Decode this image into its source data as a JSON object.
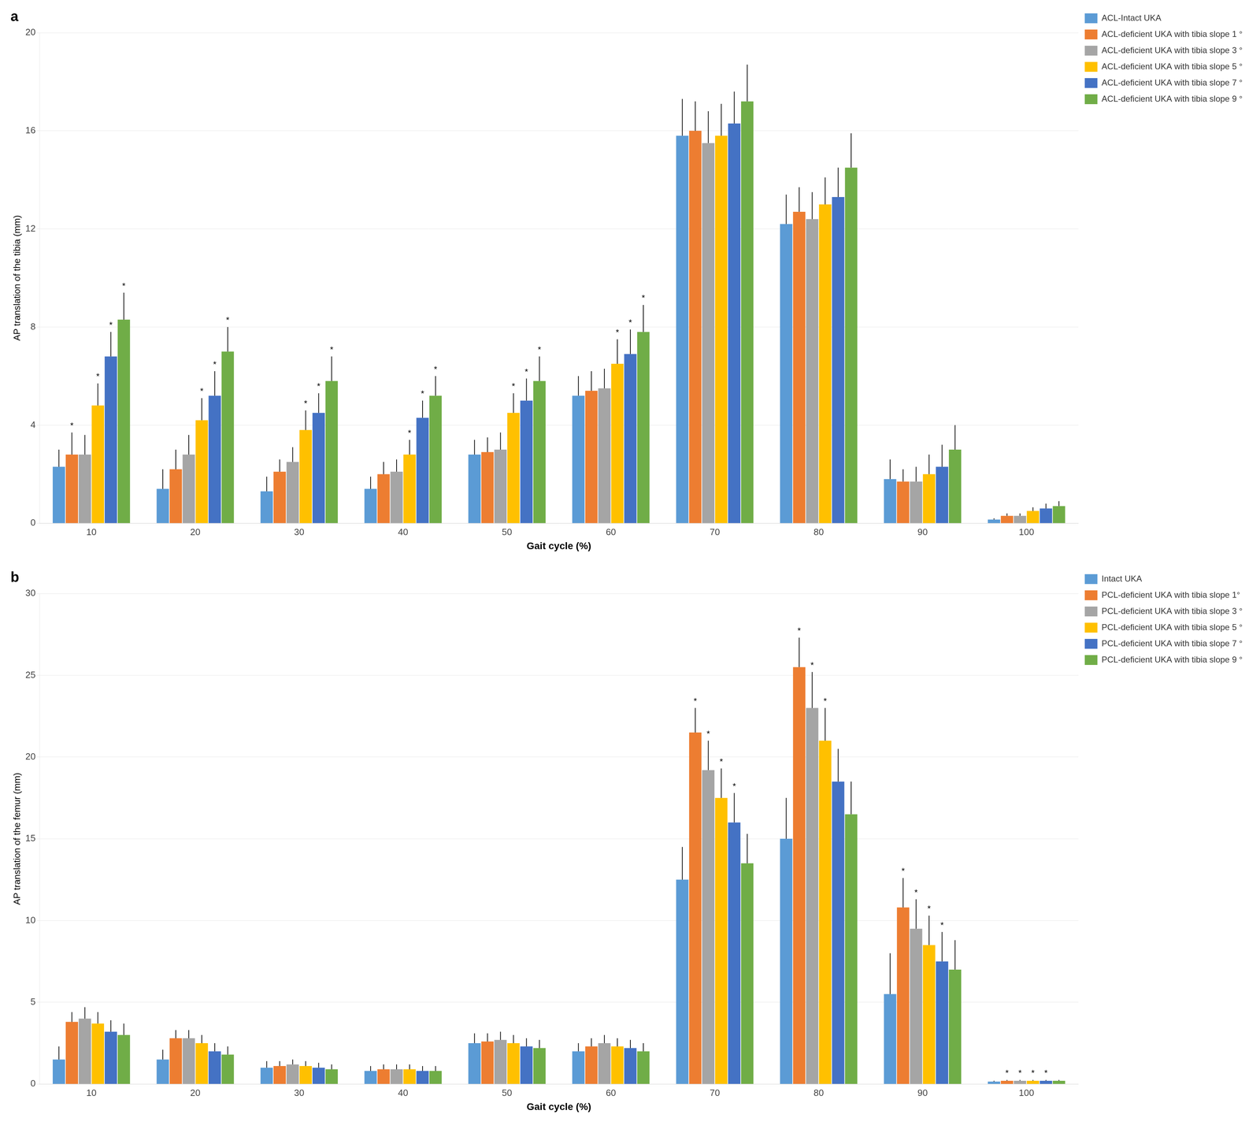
{
  "chart_data": [
    {
      "type": "bar",
      "title": "a",
      "xlabel": "Gait cycle (%)",
      "ylabel": "AP translation of the tibia (mm)",
      "categories": [
        10,
        20,
        30,
        40,
        50,
        60,
        70,
        80,
        90,
        100
      ],
      "ylim": [
        0,
        20
      ],
      "yticks": [
        0,
        4,
        8,
        12,
        16,
        20
      ],
      "grid": true,
      "legend": "right",
      "series": [
        {
          "name": "ACL-Intact UKA",
          "color": "#5B9BD5",
          "values": [
            2.3,
            1.4,
            1.3,
            1.4,
            2.8,
            5.2,
            15.8,
            12.2,
            1.8,
            0.15
          ],
          "errors": [
            0.7,
            0.8,
            0.6,
            0.5,
            0.6,
            0.8,
            1.5,
            1.2,
            0.8,
            0.05
          ],
          "annotations": [
            null,
            null,
            null,
            null,
            null,
            null,
            null,
            null,
            null,
            null
          ]
        },
        {
          "name": "ACL-deficient UKA with tibia slope 1 °",
          "color": "#ED7D31",
          "values": [
            2.8,
            2.2,
            2.1,
            2.0,
            2.9,
            5.4,
            16.0,
            12.7,
            1.7,
            0.3
          ],
          "errors": [
            0.9,
            0.8,
            0.5,
            0.5,
            0.6,
            0.8,
            1.2,
            1.0,
            0.5,
            0.1
          ],
          "annotations": [
            "*",
            null,
            null,
            null,
            null,
            null,
            null,
            null,
            null,
            null
          ]
        },
        {
          "name": "ACL-deficient UKA with tibia slope 3 °",
          "color": "#A5A5A5",
          "values": [
            2.8,
            2.8,
            2.5,
            2.1,
            3.0,
            5.5,
            15.5,
            12.4,
            1.7,
            0.3
          ],
          "errors": [
            0.8,
            0.8,
            0.6,
            0.5,
            0.7,
            0.8,
            1.3,
            1.1,
            0.6,
            0.1
          ],
          "annotations": [
            null,
            null,
            null,
            null,
            null,
            null,
            null,
            null,
            null,
            null
          ]
        },
        {
          "name": "ACL-deficient UKA with tibia slope 5 °",
          "color": "#FFC000",
          "values": [
            4.8,
            4.2,
            3.8,
            2.8,
            4.5,
            6.5,
            15.8,
            13.0,
            2.0,
            0.5
          ],
          "errors": [
            0.9,
            0.9,
            0.8,
            0.6,
            0.8,
            1.0,
            1.3,
            1.1,
            0.8,
            0.15
          ],
          "annotations": [
            "*",
            "*",
            "*",
            "*",
            "*",
            "*",
            null,
            null,
            null,
            null
          ]
        },
        {
          "name": "ACL-deficient UKA with tibia slope 7 °",
          "color": "#4472C4",
          "values": [
            6.8,
            5.2,
            4.5,
            4.3,
            5.0,
            6.9,
            16.3,
            13.3,
            2.3,
            0.6
          ],
          "errors": [
            1.0,
            1.0,
            0.8,
            0.7,
            0.9,
            1.0,
            1.3,
            1.2,
            0.9,
            0.2
          ],
          "annotations": [
            "*",
            "*",
            "*",
            "*",
            "*",
            "*",
            null,
            null,
            null,
            null
          ]
        },
        {
          "name": "ACL-deficient UKA with tibia slope 9 °",
          "color": "#70AD47",
          "values": [
            8.3,
            7.0,
            5.8,
            5.2,
            5.8,
            7.8,
            17.2,
            14.5,
            3.0,
            0.7
          ],
          "errors": [
            1.1,
            1.0,
            1.0,
            0.8,
            1.0,
            1.1,
            1.5,
            1.4,
            1.0,
            0.2
          ],
          "annotations": [
            "*",
            "*",
            "*",
            "*",
            "*",
            "*",
            null,
            null,
            null,
            null
          ]
        }
      ]
    },
    {
      "type": "bar",
      "title": "b",
      "xlabel": "Gait cycle (%)",
      "ylabel": "AP translation of the femur (mm)",
      "categories": [
        10,
        20,
        30,
        40,
        50,
        60,
        70,
        80,
        90,
        100
      ],
      "ylim": [
        0,
        30
      ],
      "yticks": [
        0,
        5,
        10,
        15,
        20,
        25,
        30
      ],
      "grid": true,
      "legend": "right",
      "series": [
        {
          "name": "Intact UKA",
          "color": "#5B9BD5",
          "values": [
            1.5,
            1.5,
            1.0,
            0.8,
            2.5,
            2.0,
            12.5,
            15.0,
            5.5,
            0.15
          ],
          "errors": [
            0.8,
            0.6,
            0.4,
            0.3,
            0.6,
            0.5,
            2.0,
            2.5,
            2.5,
            0.05
          ],
          "annotations": [
            null,
            null,
            null,
            null,
            null,
            null,
            null,
            null,
            null,
            null
          ]
        },
        {
          "name": "PCL-deficient UKA with tibia slope 1°",
          "color": "#ED7D31",
          "values": [
            3.8,
            2.8,
            1.1,
            0.9,
            2.6,
            2.3,
            21.5,
            25.5,
            10.8,
            0.2
          ],
          "errors": [
            0.6,
            0.5,
            0.3,
            0.3,
            0.5,
            0.5,
            1.5,
            1.8,
            1.8,
            0.05
          ],
          "annotations": [
            null,
            null,
            null,
            null,
            null,
            null,
            "*",
            "*",
            "*",
            "*"
          ]
        },
        {
          "name": "PCL-deficient UKA with tibia slope 3 °",
          "color": "#A5A5A5",
          "values": [
            4.0,
            2.8,
            1.2,
            0.9,
            2.7,
            2.5,
            19.2,
            23.0,
            9.5,
            0.2
          ],
          "errors": [
            0.7,
            0.5,
            0.3,
            0.3,
            0.5,
            0.5,
            1.8,
            2.2,
            1.8,
            0.05
          ],
          "annotations": [
            null,
            null,
            null,
            null,
            null,
            null,
            "*",
            "*",
            "*",
            "*"
          ]
        },
        {
          "name": "PCL-deficient UKA with tibia slope 5 °",
          "color": "#FFC000",
          "values": [
            3.7,
            2.5,
            1.1,
            0.9,
            2.5,
            2.3,
            17.5,
            21.0,
            8.5,
            0.2
          ],
          "errors": [
            0.7,
            0.5,
            0.3,
            0.3,
            0.5,
            0.5,
            1.8,
            2.0,
            1.8,
            0.05
          ],
          "annotations": [
            null,
            null,
            null,
            null,
            null,
            null,
            "*",
            "*",
            "*",
            "*"
          ]
        },
        {
          "name": "PCL-deficient UKA with tibia slope 7 °",
          "color": "#4472C4",
          "values": [
            3.2,
            2.0,
            1.0,
            0.8,
            2.3,
            2.2,
            16.0,
            18.5,
            7.5,
            0.2
          ],
          "errors": [
            0.7,
            0.5,
            0.3,
            0.3,
            0.5,
            0.5,
            1.8,
            2.0,
            1.8,
            0.05
          ],
          "annotations": [
            null,
            null,
            null,
            null,
            null,
            null,
            "*",
            null,
            "*",
            "*"
          ]
        },
        {
          "name": "PCL-deficient UKA with tibia slope 9 °",
          "color": "#70AD47",
          "values": [
            3.0,
            1.8,
            0.9,
            0.8,
            2.2,
            2.0,
            13.5,
            16.5,
            7.0,
            0.2
          ],
          "errors": [
            0.7,
            0.5,
            0.3,
            0.3,
            0.5,
            0.5,
            1.8,
            2.0,
            1.8,
            0.05
          ],
          "annotations": [
            null,
            null,
            null,
            null,
            null,
            null,
            null,
            null,
            null,
            null
          ]
        }
      ]
    }
  ]
}
